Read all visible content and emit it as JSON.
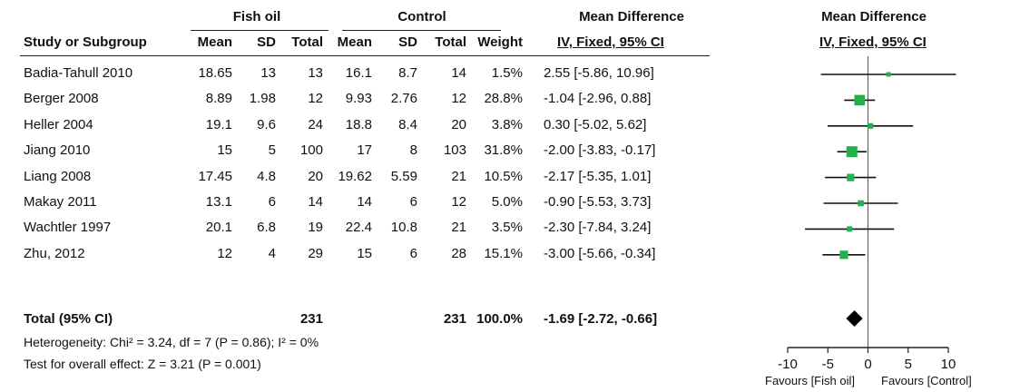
{
  "header": {
    "group1": "Fish oil",
    "group2": "Control",
    "effect_title_table": "Mean Difference",
    "effect_title_plot": "Mean Difference",
    "study_col": "Study or Subgroup",
    "mean1": "Mean",
    "sd1": "SD",
    "total1": "Total",
    "mean2": "Mean",
    "sd2": "SD",
    "total2": "Total",
    "weight": "Weight",
    "method_table": "IV, Fixed, 95% CI",
    "method_plot": "IV, Fixed, 95% CI"
  },
  "studies": [
    {
      "name": "Badia-Tahull 2010",
      "mean1": "18.65",
      "sd1": "13",
      "n1": "13",
      "mean2": "16.1",
      "sd2": "8.7",
      "n2": "14",
      "weight": "1.5%",
      "ci": "2.55 [-5.86, 10.96]"
    },
    {
      "name": "Berger 2008",
      "mean1": "8.89",
      "sd1": "1.98",
      "n1": "12",
      "mean2": "9.93",
      "sd2": "2.76",
      "n2": "12",
      "weight": "28.8%",
      "ci": "-1.04 [-2.96, 0.88]"
    },
    {
      "name": "Heller 2004",
      "mean1": "19.1",
      "sd1": "9.6",
      "n1": "24",
      "mean2": "18.8",
      "sd2": "8.4",
      "n2": "20",
      "weight": "3.8%",
      "ci": "0.30 [-5.02, 5.62]"
    },
    {
      "name": "Jiang 2010",
      "mean1": "15",
      "sd1": "5",
      "n1": "100",
      "mean2": "17",
      "sd2": "8",
      "n2": "103",
      "weight": "31.8%",
      "ci": "-2.00 [-3.83, -0.17]"
    },
    {
      "name": "Liang 2008",
      "mean1": "17.45",
      "sd1": "4.8",
      "n1": "20",
      "mean2": "19.62",
      "sd2": "5.59",
      "n2": "21",
      "weight": "10.5%",
      "ci": "-2.17 [-5.35, 1.01]"
    },
    {
      "name": "Makay 2011",
      "mean1": "13.1",
      "sd1": "6",
      "n1": "14",
      "mean2": "14",
      "sd2": "6",
      "n2": "12",
      "weight": "5.0%",
      "ci": "-0.90 [-5.53, 3.73]"
    },
    {
      "name": "Wachtler 1997",
      "mean1": "20.1",
      "sd1": "6.8",
      "n1": "19",
      "mean2": "22.4",
      "sd2": "10.8",
      "n2": "21",
      "weight": "3.5%",
      "ci": "-2.30 [-7.84, 3.24]"
    },
    {
      "name": "Zhu, 2012",
      "mean1": "12",
      "sd1": "4",
      "n1": "29",
      "mean2": "15",
      "sd2": "6",
      "n2": "28",
      "weight": "15.1%",
      "ci": "-3.00 [-5.66, -0.34]"
    }
  ],
  "total": {
    "label": "Total (95% CI)",
    "n1": "231",
    "n2": "231",
    "weight": "100.0%",
    "ci": "-1.69 [-2.72, -0.66]"
  },
  "heterogeneity": "Heterogeneity: Chi² = 3.24, df = 7 (P = 0.86); I² = 0%",
  "overall_effect": "Test for overall effect: Z = 3.21 (P = 0.001)",
  "axis_ticks": [
    "-10",
    "-5",
    "0",
    "5",
    "10"
  ],
  "favours_left": "Favours [Fish oil]",
  "favours_right": "Favours [Control]",
  "colors": {
    "marker": "#22b14c",
    "line": "#111111",
    "diamond": "#000000"
  },
  "chart_data": {
    "type": "forest",
    "xlim": [
      -10,
      10
    ],
    "ticks": [
      -10,
      -5,
      0,
      5,
      10
    ],
    "points": [
      {
        "study": "Badia-Tahull 2010",
        "md": 2.55,
        "lo": -5.86,
        "hi": 10.96,
        "weight": 1.5
      },
      {
        "study": "Berger 2008",
        "md": -1.04,
        "lo": -2.96,
        "hi": 0.88,
        "weight": 28.8
      },
      {
        "study": "Heller 2004",
        "md": 0.3,
        "lo": -5.02,
        "hi": 5.62,
        "weight": 3.8
      },
      {
        "study": "Jiang 2010",
        "md": -2.0,
        "lo": -3.83,
        "hi": -0.17,
        "weight": 31.8
      },
      {
        "study": "Liang 2008",
        "md": -2.17,
        "lo": -5.35,
        "hi": 1.01,
        "weight": 10.5
      },
      {
        "study": "Makay 2011",
        "md": -0.9,
        "lo": -5.53,
        "hi": 3.73,
        "weight": 5.0
      },
      {
        "study": "Wachtler 1997",
        "md": -2.3,
        "lo": -7.84,
        "hi": 3.24,
        "weight": 3.5
      },
      {
        "study": "Zhu, 2012",
        "md": -3.0,
        "lo": -5.66,
        "hi": -0.34,
        "weight": 15.1
      }
    ],
    "pooled": {
      "md": -1.69,
      "lo": -2.72,
      "hi": -0.66
    }
  }
}
